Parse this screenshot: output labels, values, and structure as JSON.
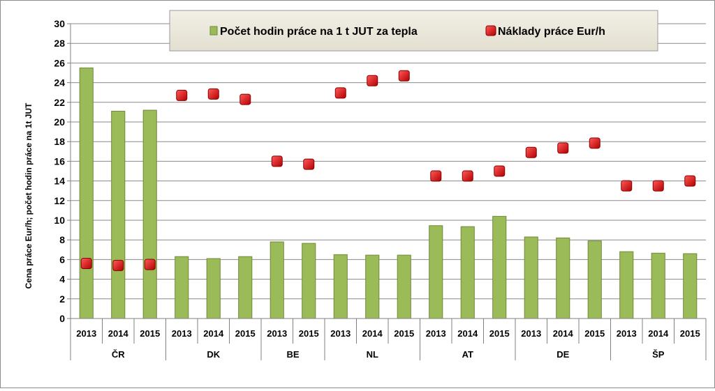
{
  "chart_data": {
    "type": "bar",
    "ylabel": "Cena práce Eur/h; počet hodin práce na 1t JUT",
    "ylim": [
      0,
      30
    ],
    "yticks": [
      0,
      2,
      4,
      6,
      8,
      10,
      12,
      14,
      16,
      18,
      20,
      22,
      24,
      26,
      28,
      30
    ],
    "grid": true,
    "legend_position": "top",
    "groups": [
      {
        "label": "ČR",
        "categories": [
          "2013",
          "2014",
          "2015"
        ]
      },
      {
        "label": "DK",
        "categories": [
          "2013",
          "2014",
          "2015"
        ]
      },
      {
        "label": "BE",
        "categories": [
          "2013",
          "2015"
        ]
      },
      {
        "label": "NL",
        "categories": [
          "2013",
          "2014",
          "2015"
        ]
      },
      {
        "label": "AT",
        "categories": [
          "2013",
          "2014",
          "2015"
        ]
      },
      {
        "label": "DE",
        "categories": [
          "2013",
          "2014",
          "2015"
        ]
      },
      {
        "label": "ŠP",
        "categories": [
          "2013",
          "2014",
          "2015"
        ]
      }
    ],
    "series": [
      {
        "name": "Počet hodin práce na 1 t JUT za tepla",
        "type": "bar",
        "color": "#9bbb59",
        "values": [
          25.5,
          21.1,
          21.2,
          6.3,
          6.1,
          6.3,
          7.8,
          7.65,
          6.5,
          6.45,
          6.45,
          9.45,
          9.35,
          10.4,
          8.3,
          8.2,
          7.9,
          6.8,
          6.65,
          6.6
        ]
      },
      {
        "name": "Náklady práce Eur/h",
        "type": "marker",
        "color": "#e31a1c",
        "values": [
          5.6,
          5.4,
          5.5,
          22.7,
          22.85,
          22.3,
          16.0,
          15.7,
          22.95,
          24.2,
          24.7,
          14.5,
          14.5,
          15.0,
          16.9,
          17.35,
          17.85,
          13.5,
          13.5,
          14.0
        ]
      }
    ]
  }
}
